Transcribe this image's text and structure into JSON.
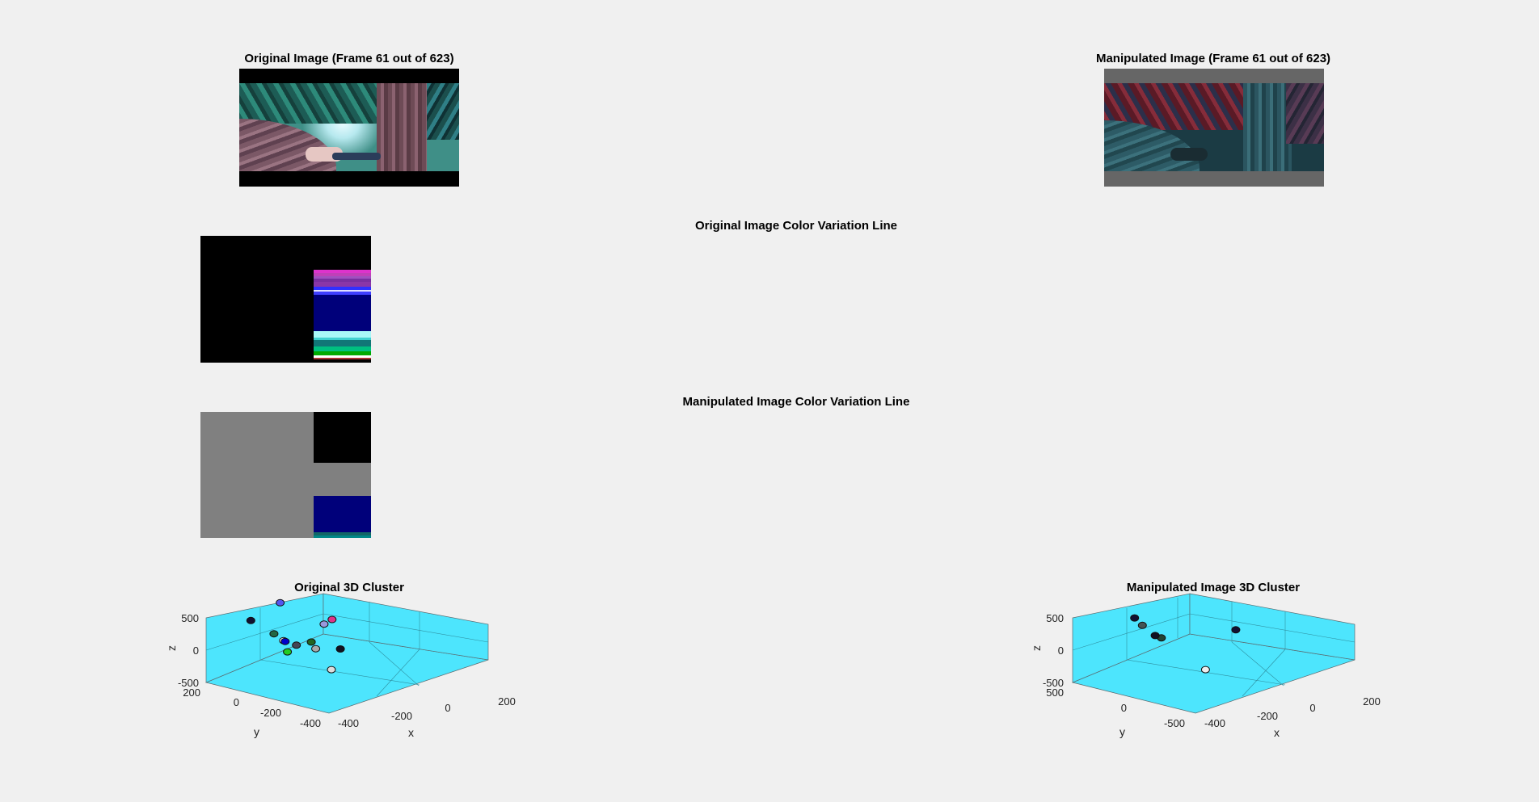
{
  "figure": {
    "orig_image_title": "Original Image (Frame 61 out of 623)",
    "manip_image_title": "Manipulated Image (Frame 61 out of 623)",
    "orig_line_title": "Original Image Color Variation Line",
    "manip_line_title": "Manipulated Image Color Variation Line",
    "orig_cluster_title": "Original 3D Cluster",
    "manip_cluster_title": "Manipulated Image 3D Cluster"
  },
  "colors": {
    "figure_bg": "#f0f0f0",
    "axes_bg": "#4de5fd",
    "letterbox_original": "#000000",
    "letterbox_manipulated": "#666666"
  },
  "chart_data": [
    {
      "type": "scatter",
      "subtype": "scatter3d",
      "title": "Original 3D Cluster",
      "xlabel": "x",
      "ylabel": "y",
      "zlabel": "z",
      "xticks": [
        "-400",
        "-200",
        "0",
        "200"
      ],
      "yticks": [
        "200",
        "0",
        "-200",
        "-400"
      ],
      "zticks": [
        "500",
        "0",
        "-500"
      ],
      "xlim": [
        -450,
        250
      ],
      "ylim": [
        -450,
        250
      ],
      "zlim": [
        -500,
        500
      ],
      "grid": true,
      "points": [
        {
          "x": -60,
          "y": 200,
          "z": 350,
          "color": "#5555ee"
        },
        {
          "x": -150,
          "y": 150,
          "z": 0,
          "color": "#226644"
        },
        {
          "x": -330,
          "y": 110,
          "z": 425,
          "color": "#111133"
        },
        {
          "x": -260,
          "y": -10,
          "z": 120,
          "color": "#ffffff"
        },
        {
          "x": -240,
          "y": 0,
          "z": 80,
          "color": "#0000cc"
        },
        {
          "x": -330,
          "y": -150,
          "z": 220,
          "color": "#444455"
        },
        {
          "x": -330,
          "y": -260,
          "z": 240,
          "color": "#aaaaaa"
        },
        {
          "x": -320,
          "y": -340,
          "z": -40,
          "color": "#dddddd"
        },
        {
          "x": -210,
          "y": -120,
          "z": 120,
          "color": "#226622"
        },
        {
          "x": -60,
          "y": -50,
          "z": 190,
          "color": "#9999dd"
        },
        {
          "x": 40,
          "y": 0,
          "z": 120,
          "color": "#dd3388"
        },
        {
          "x": -300,
          "y": -70,
          "z": 30,
          "color": "#22cc22"
        },
        {
          "x": -120,
          "y": -200,
          "z": -30,
          "color": "#111122"
        }
      ]
    },
    {
      "type": "scatter",
      "subtype": "scatter3d",
      "title": "Manipulated Image 3D Cluster",
      "xlabel": "x",
      "ylabel": "y",
      "zlabel": "z",
      "xticks": [
        "-400",
        "-200",
        "0",
        "200"
      ],
      "yticks": [
        "500",
        "0",
        "-500"
      ],
      "zticks": [
        "500",
        "0",
        "-500"
      ],
      "xlim": [
        -450,
        250
      ],
      "ylim": [
        -600,
        600
      ],
      "zlim": [
        -500,
        500
      ],
      "grid": true,
      "points": [
        {
          "x": -300,
          "y": 240,
          "z": 480,
          "color": "#111133"
        },
        {
          "x": -140,
          "y": 240,
          "z": 0,
          "color": "#224433"
        },
        {
          "x": -70,
          "y": 540,
          "z": 0,
          "color": "#445555"
        },
        {
          "x": -280,
          "y": -420,
          "z": -80,
          "color": "#eeeeee"
        },
        {
          "x": -220,
          "y": 170,
          "z": 150,
          "color": "#111122"
        },
        {
          "x": 60,
          "y": -160,
          "z": 70,
          "color": "#111133"
        }
      ]
    }
  ]
}
